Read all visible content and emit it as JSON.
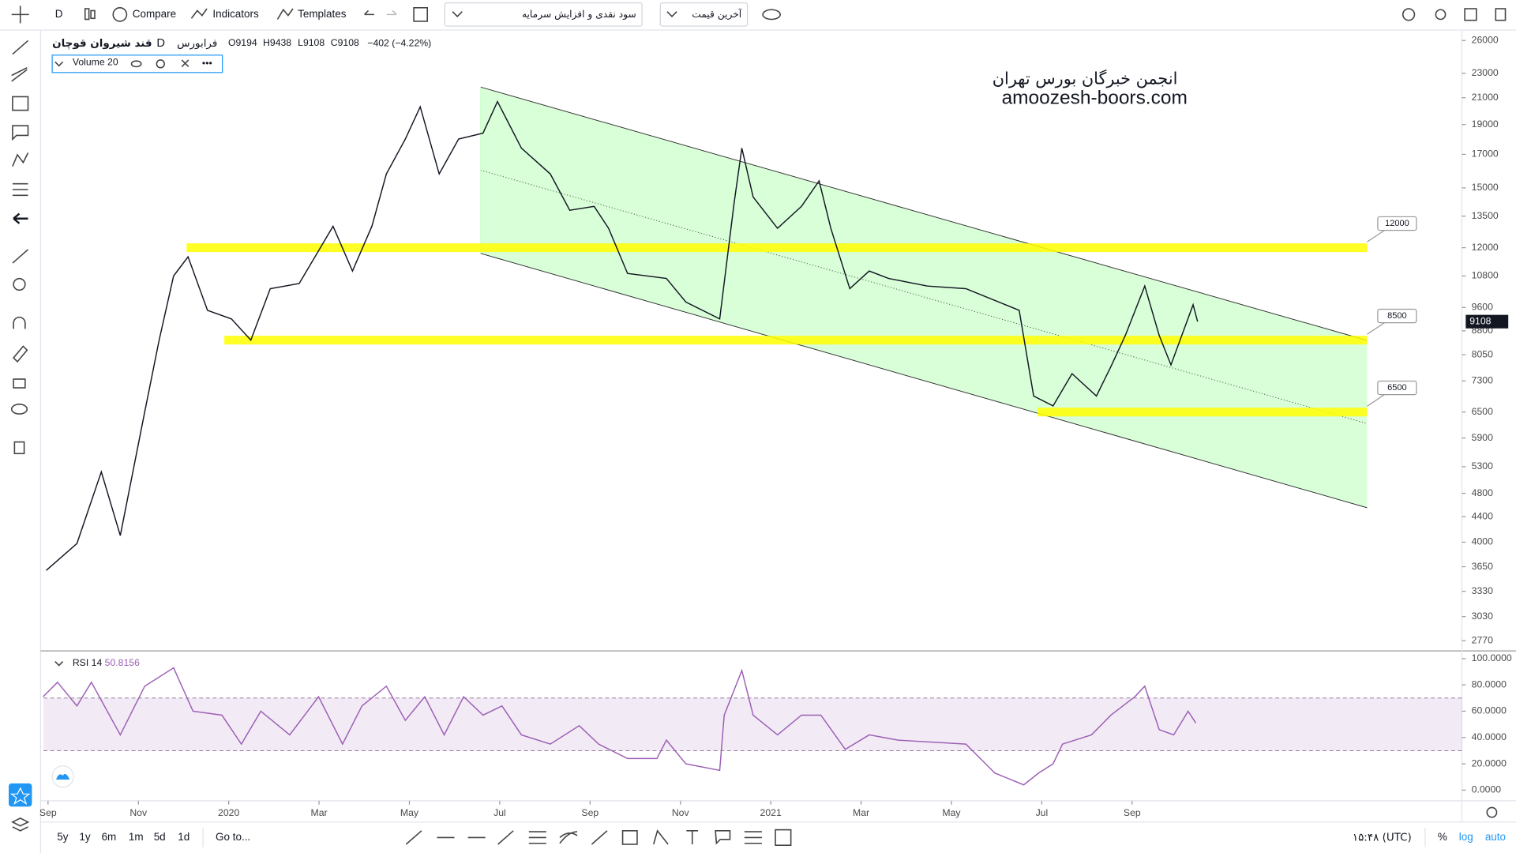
{
  "toolbar": {
    "interval": "D",
    "compare": "Compare",
    "indicators": "Indicators",
    "templates": "Templates",
    "dividends": "سود نقدی و افزایش سرمایه",
    "price_type": "آخرین قیمت"
  },
  "legend": {
    "name": "قند شیروان قوچان",
    "interval": "D",
    "exchange": "فرابورس",
    "ohlc": [
      {
        "label": "O",
        "value": 9194
      },
      {
        "label": "H",
        "value": 9438
      },
      {
        "label": "L",
        "value": 9108
      },
      {
        "label": "C",
        "value": 9108
      }
    ],
    "change": "−402 (−4.22%)",
    "volume_label": "Volume",
    "volume_length": 20
  },
  "watermark": [
    "انجمن خبرگان بورس تهران",
    "amoozesh-boors.com"
  ],
  "chart_data": [
    {
      "type": "line",
      "log_scale": true,
      "last_price": 9108,
      "x": [
        -0.04,
        0.64,
        1.18,
        1.6,
        2.14,
        2.46,
        2.78,
        3.1,
        3.53,
        4.06,
        4.49,
        4.92,
        5.56,
        6.31,
        6.74,
        7.17,
        7.49,
        7.91,
        8.24,
        8.66,
        9.09,
        9.63,
        9.95,
        10.48,
        11.12,
        11.55,
        12.09,
        12.41,
        12.83,
        13.69,
        14.12,
        14.87,
        15.19,
        15.36,
        15.61,
        16.15,
        16.68,
        17.07,
        17.33,
        17.75,
        18.18,
        18.61,
        19.47,
        20.32,
        21.5,
        21.82,
        22.25,
        22.67,
        23.21,
        23.53,
        23.85,
        24.28,
        24.6,
        24.86,
        25.35,
        25.45
      ],
      "series": [
        {
          "color": "#131722",
          "values": [
            3600,
            3980,
            5200,
            4100,
            6500,
            8500,
            10800,
            11600,
            9500,
            9200,
            8500,
            10300,
            10500,
            13000,
            11000,
            13000,
            15800,
            18000,
            20300,
            15800,
            18000,
            18400,
            20700,
            17400,
            15800,
            13800,
            14000,
            12900,
            10900,
            10700,
            9800,
            9200,
            14200,
            17400,
            14500,
            12900,
            14000,
            15400,
            12900,
            10300,
            11000,
            10700,
            10400,
            10300,
            9500,
            6900,
            6650,
            7500,
            6900,
            7700,
            8650,
            10400,
            8650,
            7750,
            9700,
            9108
          ]
        }
      ],
      "xlim": [
        -0.1,
        31.3
      ],
      "xticks": [
        {
          "value": 0,
          "label": "Sep"
        },
        {
          "value": 2,
          "label": "Nov"
        },
        {
          "value": 4,
          "label": "2020"
        },
        {
          "value": 6,
          "label": "Mar"
        },
        {
          "value": 8,
          "label": "May"
        },
        {
          "value": 10,
          "label": "Jul"
        },
        {
          "value": 12,
          "label": "Sep"
        },
        {
          "value": 14,
          "label": "Nov"
        },
        {
          "value": 16,
          "label": "2021"
        },
        {
          "value": 18,
          "label": "Mar"
        },
        {
          "value": 20,
          "label": "May"
        },
        {
          "value": 22,
          "label": "Jul"
        },
        {
          "value": 24,
          "label": "Sep"
        }
      ],
      "ylim": [
        2676,
        26940
      ],
      "yticks": [
        26000,
        23000,
        21000,
        19000,
        17000,
        15000,
        13500,
        12000,
        10800,
        9600,
        8800,
        8050,
        7300,
        6500,
        5900,
        5300,
        4800,
        4400,
        4000,
        3650,
        3330,
        3030,
        2770
      ],
      "levels": [
        12000,
        8500,
        6500
      ]
    },
    {
      "type": "line",
      "title": "RSI",
      "length": 14,
      "last_value": 50.8156,
      "color": "#9c5fb5",
      "x": [
        -0.11,
        0.21,
        0.64,
        0.96,
        1.6,
        2.14,
        2.78,
        3.21,
        3.85,
        4.28,
        4.71,
        5.35,
        5.99,
        6.52,
        6.95,
        7.49,
        7.91,
        8.34,
        8.77,
        9.2,
        9.63,
        10.05,
        10.48,
        11.12,
        11.76,
        12.19,
        12.83,
        13.48,
        13.69,
        14.12,
        14.87,
        14.97,
        15.36,
        15.61,
        16.15,
        16.68,
        17.11,
        17.65,
        18.18,
        18.82,
        20.32,
        20.96,
        21.6,
        21.93,
        22.25,
        22.46,
        23.1,
        23.53,
        24.06,
        24.28,
        24.6,
        24.92,
        25.24,
        25.41
      ],
      "series": [
        {
          "name": "RSI",
          "color": "#9c5fb5",
          "values": [
            71,
            82,
            64,
            82,
            42,
            79,
            93,
            60,
            57,
            35,
            60,
            42,
            71,
            35,
            64,
            79,
            53,
            71,
            42,
            71,
            57,
            64,
            42,
            35,
            49,
            35,
            24,
            24,
            38,
            20,
            15,
            57,
            91,
            57,
            42,
            57,
            57,
            31,
            42,
            38,
            35,
            13,
            4,
            13,
            20,
            35,
            42,
            57,
            71,
            79,
            46,
            42,
            60,
            51
          ]
        }
      ],
      "band": [
        30,
        70
      ],
      "ylim": [
        -8.1,
        104.4
      ],
      "yticks": [
        {
          "value": 0,
          "label": "0.0000"
        },
        {
          "value": 20,
          "label": "20.0000"
        },
        {
          "value": 40,
          "label": "40.0000"
        },
        {
          "value": 60,
          "label": "60.0000"
        },
        {
          "value": 80,
          "label": "80.0000"
        },
        {
          "value": 100,
          "label": "100.0000"
        }
      ]
    }
  ],
  "bottom": {
    "ranges": [
      "5y",
      "1y",
      "6m",
      "1m",
      "5d",
      "1d"
    ],
    "goto": "Go to...",
    "clock": "۱۵:۴۸ (UTC)",
    "percent": "%",
    "log": "log",
    "auto": "auto"
  }
}
